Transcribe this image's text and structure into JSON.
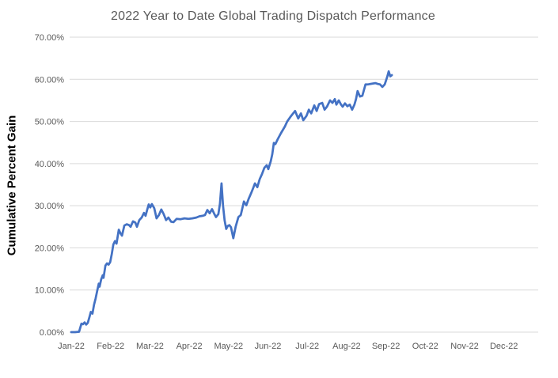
{
  "chart_data": {
    "type": "line",
    "title": "2022 Year to Date Global Trading Dispatch Performance",
    "xlabel": "",
    "ylabel": "Cumulative Percent Gain",
    "ylim": [
      0,
      70
    ],
    "ytick_step": 10,
    "ytick_labels": [
      "0.00%",
      "10.00%",
      "20.00%",
      "30.00%",
      "40.00%",
      "50.00%",
      "60.00%",
      "70.00%"
    ],
    "xtick_labels": [
      "Jan-22",
      "Feb-22",
      "Mar-22",
      "Apr-22",
      "May-22",
      "Jun-22",
      "Jul-22",
      "Aug-22",
      "Sep-22",
      "Oct-22",
      "Nov-22",
      "Dec-22"
    ],
    "x_axis_unit": "months_since_jan_2022",
    "x_visible_range": [
      0,
      11.9
    ],
    "grid": "horizontal",
    "legend": "none",
    "series": [
      {
        "name": "Cumulative Percent Gain",
        "color": "#4472C4",
        "points": [
          [
            0.0,
            0.0
          ],
          [
            0.1,
            0.0
          ],
          [
            0.2,
            0.1
          ],
          [
            0.26,
            2.0
          ],
          [
            0.3,
            1.9
          ],
          [
            0.34,
            2.3
          ],
          [
            0.38,
            1.8
          ],
          [
            0.42,
            2.2
          ],
          [
            0.46,
            3.5
          ],
          [
            0.5,
            4.8
          ],
          [
            0.54,
            4.4
          ],
          [
            0.58,
            6.5
          ],
          [
            0.62,
            8.0
          ],
          [
            0.66,
            9.8
          ],
          [
            0.7,
            11.5
          ],
          [
            0.72,
            10.8
          ],
          [
            0.76,
            12.5
          ],
          [
            0.8,
            13.5
          ],
          [
            0.82,
            12.9
          ],
          [
            0.87,
            15.8
          ],
          [
            0.91,
            16.3
          ],
          [
            0.95,
            16.0
          ],
          [
            0.99,
            16.6
          ],
          [
            1.03,
            18.5
          ],
          [
            1.07,
            20.8
          ],
          [
            1.11,
            21.6
          ],
          [
            1.15,
            21.0
          ],
          [
            1.21,
            24.3
          ],
          [
            1.25,
            23.5
          ],
          [
            1.29,
            22.9
          ],
          [
            1.35,
            25.3
          ],
          [
            1.41,
            25.6
          ],
          [
            1.47,
            25.4
          ],
          [
            1.51,
            25.0
          ],
          [
            1.57,
            26.3
          ],
          [
            1.63,
            26.0
          ],
          [
            1.67,
            25.0
          ],
          [
            1.73,
            26.6
          ],
          [
            1.79,
            27.2
          ],
          [
            1.85,
            28.3
          ],
          [
            1.89,
            27.6
          ],
          [
            1.93,
            29.0
          ],
          [
            1.97,
            30.3
          ],
          [
            2.01,
            29.6
          ],
          [
            2.05,
            30.4
          ],
          [
            2.11,
            29.4
          ],
          [
            2.17,
            27.0
          ],
          [
            2.23,
            27.8
          ],
          [
            2.29,
            29.1
          ],
          [
            2.35,
            28.0
          ],
          [
            2.41,
            26.6
          ],
          [
            2.47,
            27.2
          ],
          [
            2.54,
            26.2
          ],
          [
            2.6,
            26.1
          ],
          [
            2.68,
            26.9
          ],
          [
            2.78,
            26.8
          ],
          [
            2.88,
            27.0
          ],
          [
            2.98,
            26.9
          ],
          [
            3.08,
            27.0
          ],
          [
            3.18,
            27.2
          ],
          [
            3.26,
            27.5
          ],
          [
            3.34,
            27.6
          ],
          [
            3.4,
            27.8
          ],
          [
            3.46,
            29.0
          ],
          [
            3.52,
            28.2
          ],
          [
            3.58,
            29.2
          ],
          [
            3.64,
            28.0
          ],
          [
            3.68,
            27.3
          ],
          [
            3.74,
            28.0
          ],
          [
            3.78,
            30.5
          ],
          [
            3.82,
            35.3
          ],
          [
            3.86,
            30.0
          ],
          [
            3.9,
            26.5
          ],
          [
            3.94,
            24.5
          ],
          [
            3.98,
            25.2
          ],
          [
            4.02,
            25.4
          ],
          [
            4.06,
            24.9
          ],
          [
            4.12,
            22.3
          ],
          [
            4.18,
            25.0
          ],
          [
            4.25,
            27.3
          ],
          [
            4.31,
            27.8
          ],
          [
            4.39,
            31.0
          ],
          [
            4.45,
            30.1
          ],
          [
            4.51,
            31.6
          ],
          [
            4.57,
            32.9
          ],
          [
            4.63,
            34.3
          ],
          [
            4.67,
            35.3
          ],
          [
            4.73,
            34.4
          ],
          [
            4.79,
            36.3
          ],
          [
            4.85,
            37.5
          ],
          [
            4.91,
            39.0
          ],
          [
            4.97,
            39.6
          ],
          [
            5.01,
            38.7
          ],
          [
            5.07,
            40.5
          ],
          [
            5.11,
            42.2
          ],
          [
            5.15,
            44.9
          ],
          [
            5.19,
            44.6
          ],
          [
            5.25,
            45.8
          ],
          [
            5.33,
            47.2
          ],
          [
            5.43,
            48.8
          ],
          [
            5.49,
            50.0
          ],
          [
            5.59,
            51.3
          ],
          [
            5.69,
            52.5
          ],
          [
            5.77,
            50.7
          ],
          [
            5.84,
            51.9
          ],
          [
            5.9,
            50.3
          ],
          [
            5.98,
            51.3
          ],
          [
            6.04,
            52.8
          ],
          [
            6.1,
            51.9
          ],
          [
            6.18,
            53.8
          ],
          [
            6.24,
            52.5
          ],
          [
            6.3,
            54.1
          ],
          [
            6.38,
            54.4
          ],
          [
            6.44,
            52.8
          ],
          [
            6.5,
            53.5
          ],
          [
            6.58,
            55.0
          ],
          [
            6.64,
            54.4
          ],
          [
            6.7,
            55.3
          ],
          [
            6.74,
            54.0
          ],
          [
            6.8,
            55.0
          ],
          [
            6.86,
            54.0
          ],
          [
            6.9,
            53.5
          ],
          [
            6.96,
            54.3
          ],
          [
            7.02,
            53.6
          ],
          [
            7.08,
            54.0
          ],
          [
            7.14,
            52.8
          ],
          [
            7.2,
            54.0
          ],
          [
            7.24,
            55.3
          ],
          [
            7.28,
            57.2
          ],
          [
            7.34,
            55.9
          ],
          [
            7.4,
            56.1
          ],
          [
            7.48,
            58.8
          ],
          [
            7.55,
            58.8
          ],
          [
            7.61,
            58.9
          ],
          [
            7.67,
            59.0
          ],
          [
            7.73,
            59.1
          ],
          [
            7.79,
            58.9
          ],
          [
            7.85,
            58.8
          ],
          [
            7.91,
            58.2
          ],
          [
            7.97,
            58.8
          ],
          [
            8.03,
            60.5
          ],
          [
            8.07,
            61.9
          ],
          [
            8.11,
            60.7
          ],
          [
            8.15,
            61.0
          ]
        ]
      }
    ]
  },
  "colors": {
    "line": "#4472C4",
    "grid": "#D9D9D9",
    "tick_text": "#595959",
    "title_text": "#595959",
    "axis_title_text": "#000000",
    "background": "#FFFFFF"
  }
}
